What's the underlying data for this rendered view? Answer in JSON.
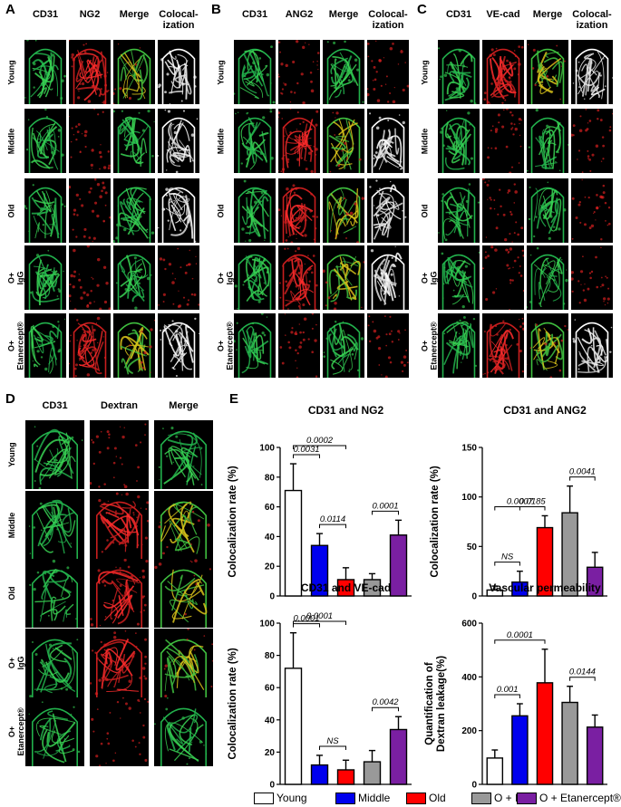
{
  "panels": {
    "A": {
      "letter": "A",
      "columns": [
        "CD31",
        "NG2",
        "Merge",
        "Colocal-\nization"
      ],
      "rows": [
        "Young",
        "Middle",
        "Old",
        "O+\nIgG",
        "O+\nEtanercept®"
      ]
    },
    "B": {
      "letter": "B",
      "columns": [
        "CD31",
        "ANG2",
        "Merge",
        "Colocal-\nization"
      ],
      "rows": [
        "Young",
        "Middle",
        "Old",
        "O+\nIgG",
        "O+\nEtanercept®"
      ]
    },
    "C": {
      "letter": "C",
      "columns": [
        "CD31",
        "VE-cad",
        "Merge",
        "Colocal-\nization"
      ],
      "rows": [
        "Young",
        "Middle",
        "Old",
        "O+\nIgG",
        "O+\nEtanercept®"
      ]
    },
    "D": {
      "letter": "D",
      "columns": [
        "CD31",
        "Dextran",
        "Merge"
      ],
      "rows": [
        "Young",
        "Middle",
        "Old",
        "O+\nIgG",
        "O+\nEtanercept®"
      ],
      "asterisk": "*"
    },
    "E": {
      "letter": "E"
    }
  },
  "legend": {
    "items": [
      {
        "label": "Young",
        "color": "#ffffff"
      },
      {
        "label": "Middle",
        "color": "#0000ee"
      },
      {
        "label": "Old",
        "color": "#ff0000"
      },
      {
        "label": "O + IgG",
        "color": "#999999"
      },
      {
        "label": "O + Etanercept®",
        "color": "#7a1fa2"
      }
    ]
  },
  "chart_data": [
    {
      "type": "bar",
      "title": "CD31 and NG2",
      "ylabel": "Colocalization rate (%)",
      "categories": [
        "Young",
        "Middle",
        "Old",
        "O + IgG",
        "O + Etanercept®"
      ],
      "values": [
        71,
        34,
        11,
        11,
        41
      ],
      "errors": [
        18,
        8,
        8,
        4,
        10
      ],
      "ylim": [
        0,
        100
      ],
      "yticks": [
        "0",
        "20",
        "40",
        "60",
        "80",
        "100"
      ],
      "annotations": [
        {
          "text": "0.0031",
          "from": 0,
          "to": 1
        },
        {
          "text": "0.0002",
          "from": 0,
          "to": 2
        },
        {
          "text": "0.0114",
          "from": 1,
          "to": 2
        },
        {
          "text": "0.0001",
          "from": 3,
          "to": 4
        }
      ]
    },
    {
      "type": "bar",
      "title": "CD31 and ANG2",
      "ylabel": "Colocalization rate (%)",
      "categories": [
        "Young",
        "Middle",
        "Old",
        "O + IgG",
        "O + Etanercept®"
      ],
      "values": [
        6,
        14,
        69,
        84,
        29
      ],
      "errors": [
        4,
        11,
        12,
        27,
        15
      ],
      "ylim": [
        0,
        150
      ],
      "yticks": [
        "0",
        "50",
        "100",
        "150"
      ],
      "annotations": [
        {
          "text": "NS",
          "from": 0,
          "to": 1
        },
        {
          "text": "0.0007",
          "from": 0,
          "to": 2
        },
        {
          "text": "0.0185",
          "from": 1,
          "to": 2
        },
        {
          "text": "0.0041",
          "from": 3,
          "to": 4
        }
      ]
    },
    {
      "type": "bar",
      "title": "CD31 and VE-cad",
      "ylabel": "Colocalization rate (%)",
      "categories": [
        "Young",
        "Middle",
        "Old",
        "O + IgG",
        "O + Etanercept®"
      ],
      "values": [
        72,
        12,
        9,
        14,
        34
      ],
      "errors": [
        22,
        6,
        6,
        7,
        8
      ],
      "ylim": [
        0,
        100
      ],
      "yticks": [
        "0",
        "20",
        "40",
        "60",
        "80",
        "100"
      ],
      "annotations": [
        {
          "text": "0.0001",
          "from": 0,
          "to": 1
        },
        {
          "text": "0.0001",
          "from": 0,
          "to": 2
        },
        {
          "text": "NS",
          "from": 1,
          "to": 2
        },
        {
          "text": "0.0042",
          "from": 3,
          "to": 4
        }
      ]
    },
    {
      "type": "bar",
      "title": "Vascular permeability",
      "ylabel": "Quantification of\nDextran leakage(%)",
      "categories": [
        "Young",
        "Middle",
        "Old",
        "O + IgG",
        "O + Etanercept®"
      ],
      "values": [
        98,
        255,
        378,
        305,
        213
      ],
      "errors": [
        30,
        45,
        125,
        60,
        45
      ],
      "ylim": [
        0,
        600
      ],
      "yticks": [
        "0",
        "200",
        "400",
        "600"
      ],
      "annotations": [
        {
          "text": "0.001",
          "from": 0,
          "to": 1
        },
        {
          "text": "0.0001",
          "from": 0,
          "to": 2
        },
        {
          "text": "0.0144",
          "from": 3,
          "to": 4
        }
      ]
    }
  ]
}
